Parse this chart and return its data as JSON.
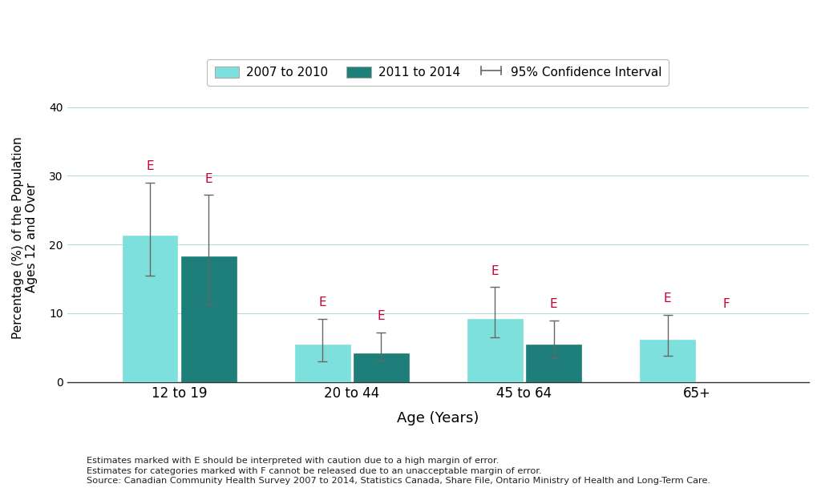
{
  "categories": [
    "12 to 19",
    "20 to 44",
    "45 to 64",
    "65+"
  ],
  "series1_values": [
    21.3,
    5.4,
    9.2,
    6.1
  ],
  "series2_values": [
    18.3,
    4.2,
    5.5,
    null
  ],
  "series1_ci_low": [
    15.5,
    3.0,
    6.5,
    3.8
  ],
  "series1_ci_high": [
    29.0,
    9.2,
    13.8,
    9.8
  ],
  "series2_ci_low": [
    11.3,
    3.1,
    3.5,
    null
  ],
  "series2_ci_high": [
    27.2,
    7.2,
    9.0,
    null
  ],
  "color1": "#7ee0dc",
  "color2": "#1e7e7a",
  "ylabel": "Percentage (%) of the Population\nAges 12 and Over",
  "xlabel": "Age (Years)",
  "ylim": [
    0,
    42
  ],
  "yticks": [
    0,
    10,
    20,
    30,
    40
  ],
  "legend_labels": [
    "2007 to 2010",
    "2011 to 2014",
    "95% Confidence Interval"
  ],
  "e_labels_series1": [
    "E",
    "E",
    "E",
    "E"
  ],
  "e_labels_series2": [
    "E",
    "E",
    "E",
    "F"
  ],
  "e_label_color": "#cc0033",
  "footnote1": "Estimates marked with E should be interpreted with caution due to a high margin of error.",
  "footnote2": "Estimates for categories marked with F cannot be released due to an unacceptable margin of error.",
  "footnote3": "Source: Canadian Community Health Survey 2007 to 2014, Statistics Canada, Share File, Ontario Ministry of Health and Long-Term Care.",
  "bar_width": 0.32,
  "bar_gap": 0.02
}
